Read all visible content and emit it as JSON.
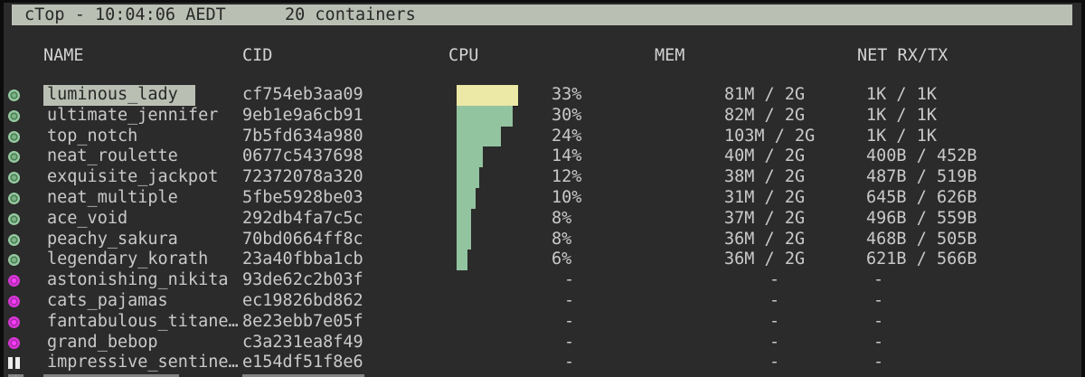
{
  "topbar": {
    "title": "cTop - 10:04:06 AEDT",
    "container_count": "20 containers"
  },
  "columns": {
    "name": "NAME",
    "cid": "CID",
    "cpu": "CPU",
    "mem": "MEM",
    "net": "NET RX/TX"
  },
  "colors": {
    "background": "#2b2b2b",
    "topbar_bg": "#babfb3",
    "text": "#c9c9c9",
    "selected_bg": "#babfb3",
    "cpu_bar_green": "#93c4a0",
    "cpu_bar_yellow": "#ece8a5",
    "running_icon_green": "#97cba1",
    "stopped_icon_magenta": "#d935d9",
    "pause_icon_white": "#ececec"
  },
  "rows": [
    {
      "status": "running",
      "icon": "green-circle-icon",
      "selected": true,
      "bar": "yellow",
      "cpu_pct": 33,
      "name": "luminous_lady",
      "cid": "cf754eb3aa09",
      "cpu": "33%",
      "mem": "81M / 2G",
      "net": "1K / 1K"
    },
    {
      "status": "running",
      "icon": "green-circle-icon",
      "selected": false,
      "bar": "green",
      "cpu_pct": 30,
      "name": "ultimate_jennifer",
      "cid": "9eb1e9a6cb91",
      "cpu": "30%",
      "mem": "82M / 2G",
      "net": "1K / 1K"
    },
    {
      "status": "running",
      "icon": "green-circle-icon",
      "selected": false,
      "bar": "green",
      "cpu_pct": 24,
      "name": "top_notch",
      "cid": "7b5fd634a980",
      "cpu": "24%",
      "mem": "103M / 2G",
      "net": "1K / 1K"
    },
    {
      "status": "running",
      "icon": "green-circle-icon",
      "selected": false,
      "bar": "green",
      "cpu_pct": 14,
      "name": "neat_roulette",
      "cid": "0677c5437698",
      "cpu": "14%",
      "mem": "40M / 2G",
      "net": "400B / 452B"
    },
    {
      "status": "running",
      "icon": "green-circle-icon",
      "selected": false,
      "bar": "green",
      "cpu_pct": 12,
      "name": "exquisite_jackpot",
      "cid": "72372078a320",
      "cpu": "12%",
      "mem": "38M / 2G",
      "net": "487B / 519B"
    },
    {
      "status": "running",
      "icon": "green-circle-icon",
      "selected": false,
      "bar": "green",
      "cpu_pct": 10,
      "name": "neat_multiple",
      "cid": "5fbe5928be03",
      "cpu": "10%",
      "mem": "31M / 2G",
      "net": "645B / 626B"
    },
    {
      "status": "running",
      "icon": "green-circle-icon",
      "selected": false,
      "bar": "green",
      "cpu_pct": 8,
      "name": "ace_void",
      "cid": "292db4fa7c5c",
      "cpu": "8%",
      "mem": "37M / 2G",
      "net": "496B / 559B"
    },
    {
      "status": "running",
      "icon": "green-circle-icon",
      "selected": false,
      "bar": "green",
      "cpu_pct": 8,
      "name": "peachy_sakura",
      "cid": "70bd0664ff8c",
      "cpu": "8%",
      "mem": "36M / 2G",
      "net": "468B / 505B"
    },
    {
      "status": "running",
      "icon": "green-circle-icon",
      "selected": false,
      "bar": "green",
      "cpu_pct": 6,
      "name": "legendary_korath",
      "cid": "23a40fbba1cb",
      "cpu": "6%",
      "mem": "36M / 2G",
      "net": "621B / 566B"
    },
    {
      "status": "stopped",
      "icon": "magenta-circle-icon",
      "selected": false,
      "bar": null,
      "cpu_pct": null,
      "name": "astonishing_nikita",
      "cid": "93de62c2b03f",
      "cpu": "-",
      "mem": "-",
      "net": "-"
    },
    {
      "status": "stopped",
      "icon": "magenta-circle-icon",
      "selected": false,
      "bar": null,
      "cpu_pct": null,
      "name": "cats_pajamas",
      "cid": "ec19826bd862",
      "cpu": "-",
      "mem": "-",
      "net": "-"
    },
    {
      "status": "stopped",
      "icon": "magenta-circle-icon",
      "selected": false,
      "bar": null,
      "cpu_pct": null,
      "name": "fantabulous_titane…",
      "cid": "8e23ebb7e05f",
      "cpu": "-",
      "mem": "-",
      "net": "-"
    },
    {
      "status": "stopped",
      "icon": "magenta-circle-icon",
      "selected": false,
      "bar": null,
      "cpu_pct": null,
      "name": "grand_bebop",
      "cid": "c3a231ea8f49",
      "cpu": "-",
      "mem": "-",
      "net": "-"
    },
    {
      "status": "paused",
      "icon": "pause-icon",
      "selected": false,
      "bar": null,
      "cpu_pct": null,
      "name": "impressive_sentine…",
      "cid": "e154df51f8e6",
      "cpu": "-",
      "mem": "-",
      "net": "-"
    }
  ]
}
